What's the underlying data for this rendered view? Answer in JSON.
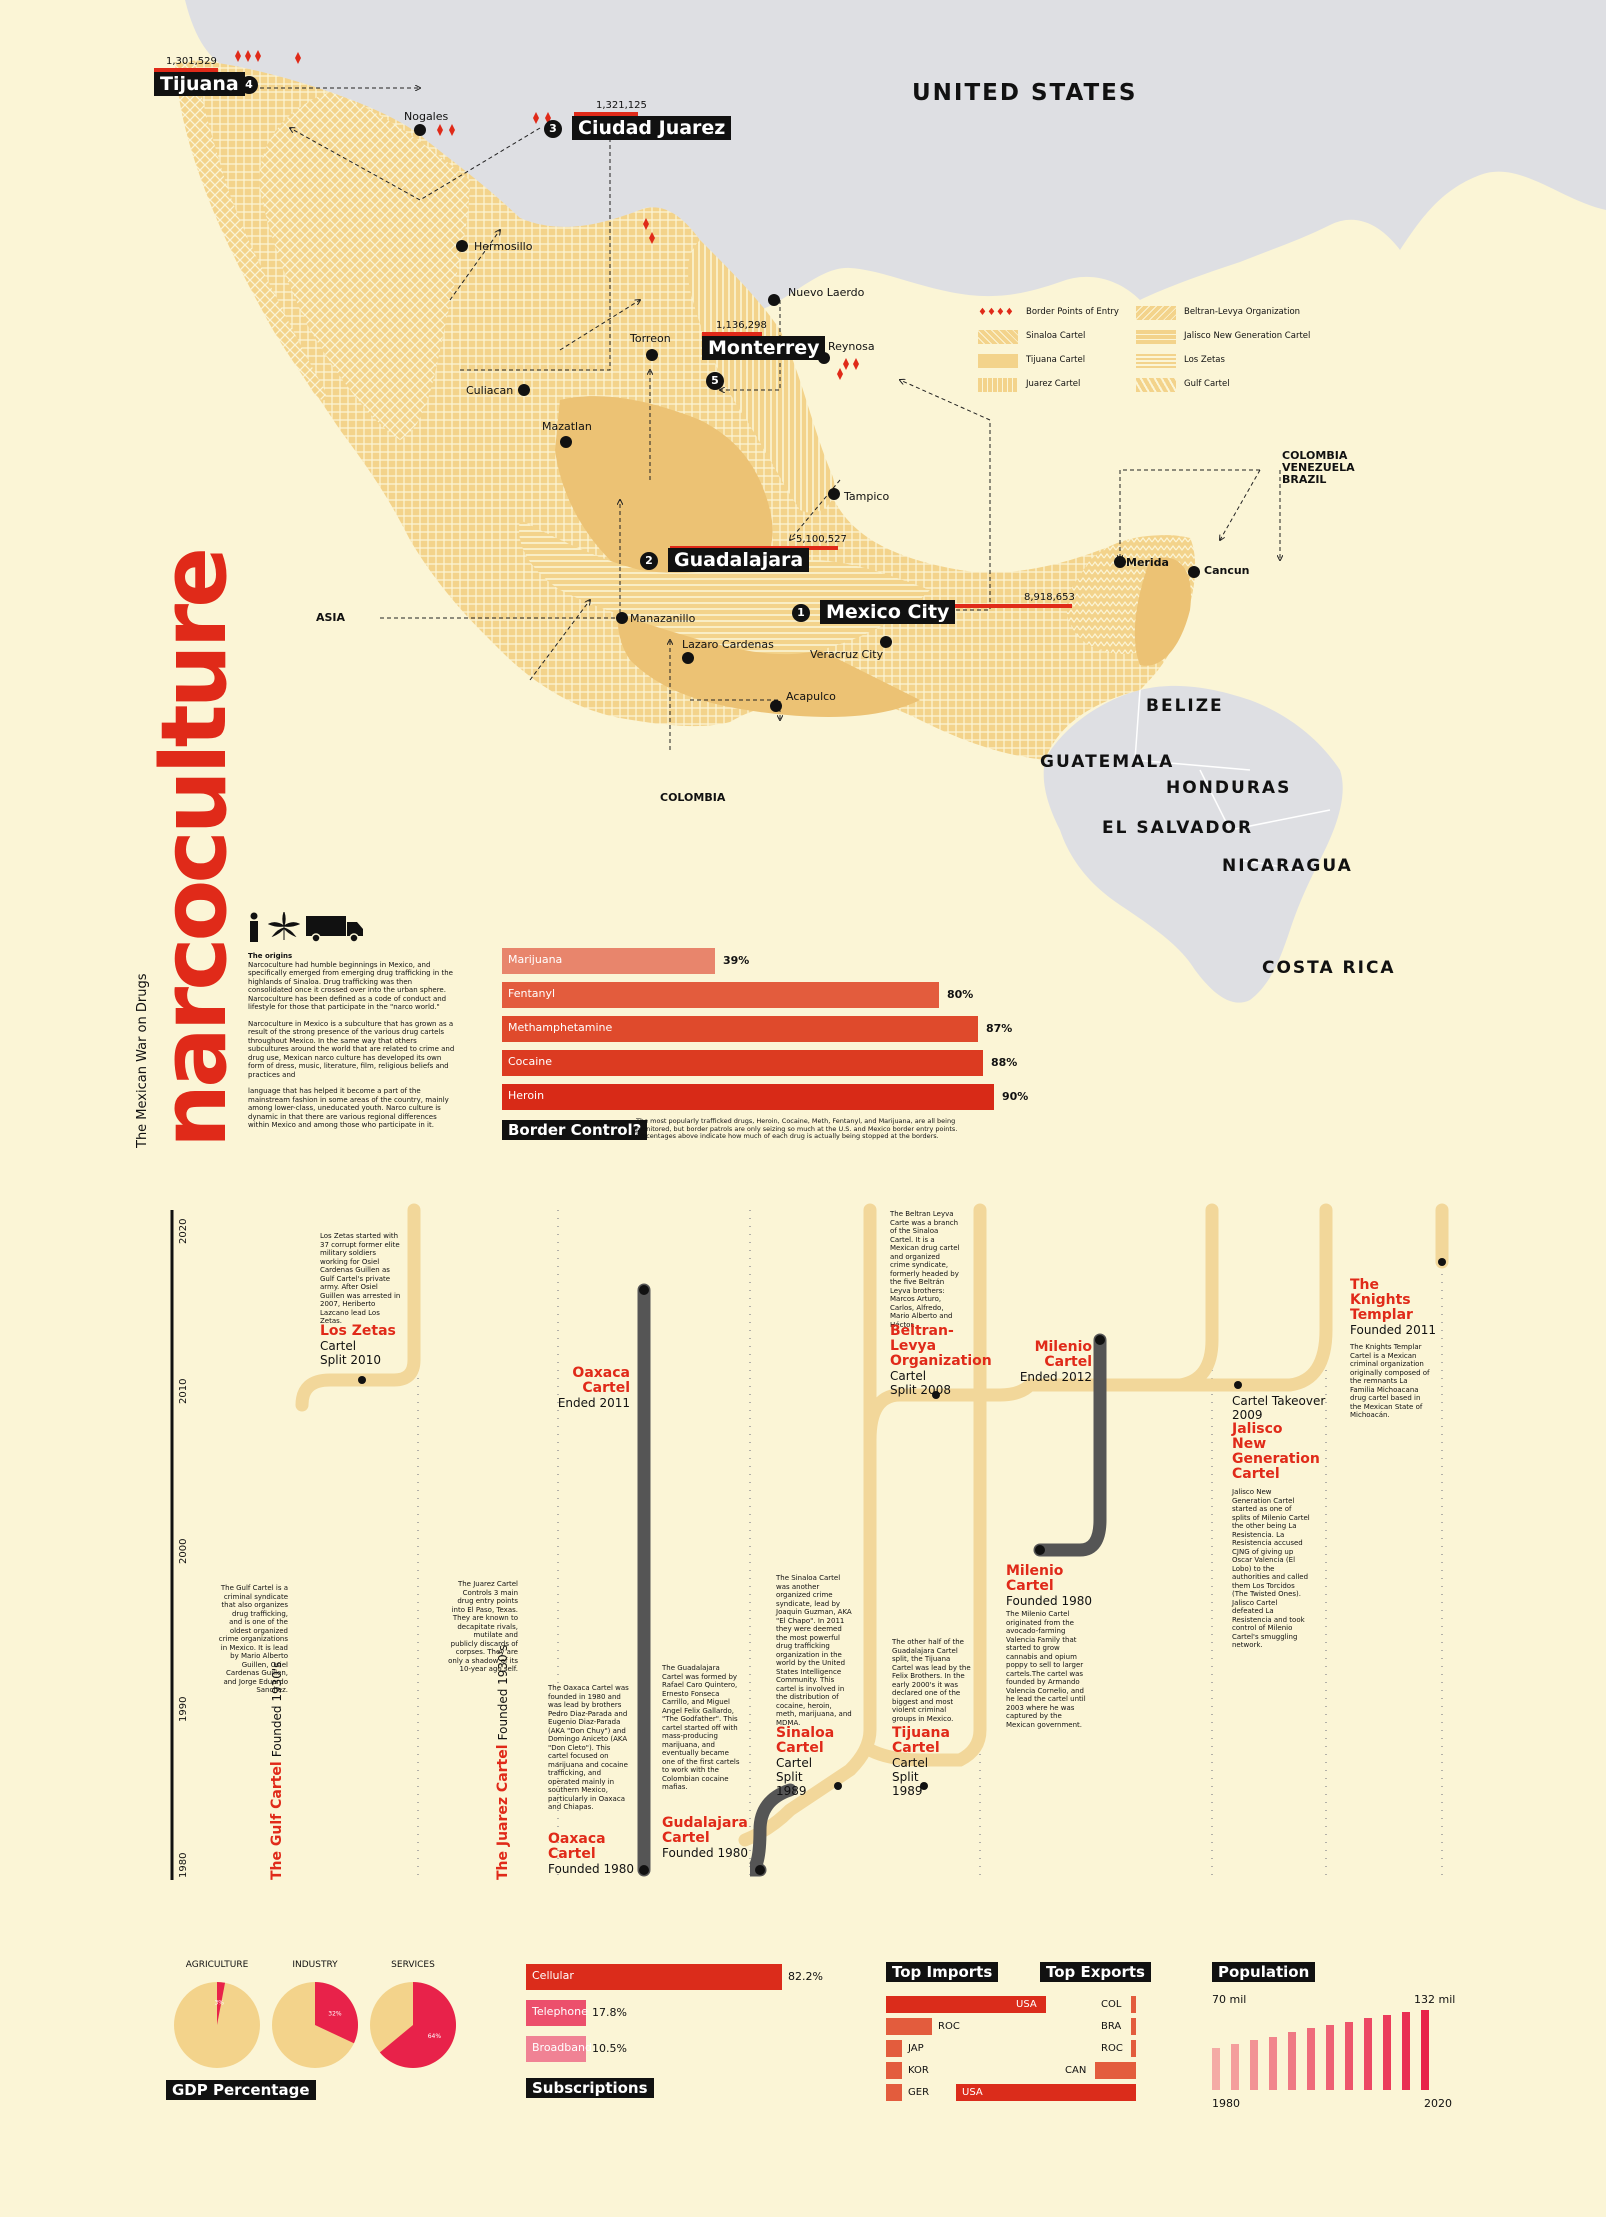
{
  "title": "narcoculture",
  "subtitle": "The Mexican War on Drugs",
  "colors": {
    "red": "#e02a19",
    "cream": "#fbf5d6",
    "tan": "#f3d38b",
    "gray": "#dedfe3",
    "dark": "#111111"
  },
  "map": {
    "countries": [
      "UNITED STATES",
      "BELIZE",
      "GUATEMALA",
      "HONDURAS",
      "EL SALVADOR",
      "NICARAGUA",
      "COSTA RICA"
    ],
    "origins": {
      "colombia_vv_brazil": [
        "COLOMBIA",
        "VENEZUELA",
        "BRAZIL"
      ],
      "asia": "ASIA",
      "colombia": "COLOMBIA"
    },
    "cities": [
      "Nogales",
      "Hermosillo",
      "Nuevo Laerdo",
      "Torreon",
      "Reynosa",
      "Culiacan",
      "Mazatlan",
      "Tampico",
      "Merida",
      "Cancun",
      "Manazanillo",
      "Lazaro Cardenas",
      "Veracruz City",
      "Acapulco"
    ],
    "major_cities": [
      {
        "rank": "1",
        "name": "Mexico City",
        "population": "8,918,653"
      },
      {
        "rank": "2",
        "name": "Guadalajara",
        "population": "5,100,527"
      },
      {
        "rank": "3",
        "name": "Ciudad Juarez",
        "population": "1,321,125"
      },
      {
        "rank": "4",
        "name": "Tijuana",
        "population": "1,301,529"
      },
      {
        "rank": "5",
        "name": "Monterrey",
        "population": "1,136,298"
      }
    ],
    "legend": [
      {
        "label": "Border Points of Entry",
        "icon": "border-points-icon"
      },
      {
        "label": "Sinaloa Cartel",
        "icon": "sinaloa-pattern"
      },
      {
        "label": "Tijuana Cartel",
        "icon": "tijuana-pattern"
      },
      {
        "label": "Juarez Cartel",
        "icon": "juarez-pattern"
      },
      {
        "label": "Beltran-Levya Organization",
        "icon": "beltran-pattern"
      },
      {
        "label": "Jalisco New Generation Cartel",
        "icon": "jalisco-pattern"
      },
      {
        "label": "Los Zetas",
        "icon": "zetas-pattern"
      },
      {
        "label": "Gulf Cartel",
        "icon": "gulf-pattern"
      }
    ]
  },
  "origins_text": {
    "heading": "The origins",
    "p1": "Narcoculture had humble beginnings in Mexico, and specifically emerged from emerging drug trafficking in the highlands of Sinaloa. Drug trafficking was then consolidated once it crossed over into the urban sphere. Narcoculture has been defined as a code of conduct and lifestyle for those that participate in the \"narco world.\"",
    "p2": "Narcoculture in Mexico is a subculture that has grown as a result of the strong presence of the various drug cartels throughout Mexico. In the same way that others subcultures around the world that are related to crime and drug use, Mexican narco culture has developed its own form of dress, music, literature, film, religious beliefs and practices and",
    "p3": "language that has helped it become a part of the mainstream fashion in some areas of the country, mainly among lower-class, uneducated youth. Narco culture is dynamic in that there are various regional differences within Mexico and among those who participate in it."
  },
  "border_control": {
    "heading": "Border Control?",
    "caption": "The most popularly trafficked drugs, Heroin, Cocaine, Meth, Fentanyl, and Marijuana, are all being monitored, but border patrols are only seizing so much at the U.S. and Mexico border entry points. Percentages above indicate how much of each drug is actually being stopped at the borders.",
    "bars": [
      {
        "label": "Marijuana",
        "value": 39,
        "text": "39%",
        "color": "#e8856c"
      },
      {
        "label": "Fentanyl",
        "value": 80,
        "text": "80%",
        "color": "#e35c3d"
      },
      {
        "label": "Methamphetamine",
        "value": 87,
        "text": "87%",
        "color": "#df4a2c"
      },
      {
        "label": "Cocaine",
        "value": 88,
        "text": "88%",
        "color": "#dc3b21"
      },
      {
        "label": "Heroin",
        "value": 90,
        "text": "90%",
        "color": "#d82a17"
      }
    ]
  },
  "timeline": {
    "years": [
      "1980",
      "1990",
      "2000",
      "2010",
      "2020"
    ],
    "cartels": [
      {
        "name": "The Gulf Cartel",
        "sub": "Founded 1930's",
        "desc": "The Gulf Cartel is a criminal syndicate that also organizes drug trafficking, and is one of the oldest organized crime organizations in Mexico. It is lead by Mario Alberto Guillen, Osiel Cardenas Guillen, and Jorge Eduardo Sanchez."
      },
      {
        "name": "Los Zetas",
        "sub": "Cartel Split 2010",
        "desc": "Los Zetas started with 37 corrupt former elite military soldiers working for Osiel Cardenas Guillen as Gulf Cartel's private army. After Osiel Guillen was arrested in 2007, Heriberto Lazcano lead Los Zetas."
      },
      {
        "name": "The Juarez Cartel",
        "sub": "Founded 1930's",
        "desc": "The Juarez Cartel Controls 3 main drug entry points into El Paso, Texas. They are known to decapitate rivals, mutilate and publicly discards of corpses. They are only a shadow of its 10-year ago self."
      },
      {
        "name": "Oaxaca Cartel",
        "sub": "Ended 2011",
        "desc": ""
      },
      {
        "name": "Oaxaca Cartel",
        "sub": "Founded 1980",
        "desc": "The Oaxaca Cartel was founded in 1980 and was lead by brothers Pedro Diaz-Parada and Eugenio Diaz-Parada (AKA \"Don Chuy\") and Domingo Aniceto (AKA \"Don Cleto\"). This cartel focused on marijuana and cocaine trafficking, and operated mainly in southern Mexico, particularly in Oaxaca and Chiapas."
      },
      {
        "name": "Gudalajara Cartel",
        "sub": "Founded 1980",
        "desc": "The Guadalajara Cartel was formed by Rafael Caro Quintero, Ernesto Fonseca Carrillo, and Miguel Angel Felix Gallardo, \"The Godfather\". This cartel started off with mass-producing marijuana, and eventually became one of the first cartels to work with the Colombian cocaine mafias."
      },
      {
        "name": "Sinaloa Cartel",
        "sub": "Cartel Split 1989",
        "desc": "The Sinaloa Cartel was another organized crime syndicate, lead by Joaquin Guzman, AKA \"El Chapo\". In 2011 they were deemed the most powerful drug trafficking organization in the world by the United States Intelligence Community. This cartel is involved in the distribution of cocaine, heroin, meth, marijuana, and MDMA."
      },
      {
        "name": "Beltran-Levya Organization",
        "sub": "Cartel Split 2008",
        "desc": "The Beltran Leyva Carte was a branch of the Sinaloa Cartel. It is a Mexican drug cartel and organized crime syndicate, formerly headed by the five Beltrán Leyva brothers: Marcos Arturo, Carlos, Alfredo, Mario Alberto and Héctor."
      },
      {
        "name": "Tijuana Cartel",
        "sub": "Cartel Split 1989",
        "desc": "The other half of the Guadalajara Cartel split, the Tijuana Cartel was lead by the Felix Brothers. In the early 2000's it was declared one of the biggest and most violent criminal groups in Mexico."
      },
      {
        "name": "Milenio Cartel",
        "sub": "Ended 2012",
        "desc": ""
      },
      {
        "name": "Milenio Cartel",
        "sub": "Founded 1980",
        "desc": "The Milenio Cartel originated from the avocado-farming Valencia Family that started to grow cannabis and opium poppy to sell to larger cartels.The cartel was founded by Armando Valencia Cornelio, and he lead the cartel until 2003 where he was captured by the Mexican government."
      },
      {
        "name": "Jalisco New Generation Cartel",
        "sub": "Cartel Takeover 2009",
        "desc": "Jalisco New Generation Cartel started as one of splits of Milenio Cartel the other being La Resistencia. La Resistencia accused CJNG of giving up Oscar Valencia (El Lobo) to the authorities and called them Los Torcidos (The Twisted Ones). Jalisco Cartel defeated La Resistencia and took control of Milenio Cartel's smuggling network."
      },
      {
        "name": "The Knights Templar",
        "sub": "Founded 2011",
        "desc": "The Knights Templar Cartel is a Mexican criminal organization originally composed of the remnants La Familia Michoacana drug cartel based in the Mexican State of Michoacán."
      }
    ]
  },
  "gdp": {
    "heading": "GDP Percentage",
    "pies": [
      {
        "label": "AGRICULTURE",
        "value": 3,
        "text": "3%"
      },
      {
        "label": "INDUSTRY",
        "value": 32,
        "text": "32%"
      },
      {
        "label": "SERVICES",
        "value": 64,
        "text": "64%"
      }
    ]
  },
  "subscriptions": {
    "heading": "Subscriptions",
    "bars": [
      {
        "label": "Cellular",
        "value": 82.2,
        "text": "82.2%",
        "color": "#db2c1b"
      },
      {
        "label": "Telephone",
        "value": 17.8,
        "text": "17.8%",
        "color": "#ec4f6c"
      },
      {
        "label": "Broadband",
        "value": 10.5,
        "text": "10.5%",
        "color": "#f08294"
      }
    ]
  },
  "trade": {
    "imports_heading": "Top Imports",
    "exports_heading": "Top Exports",
    "imports": [
      {
        "label": "USA",
        "value": 100
      },
      {
        "label": "ROC",
        "value": 29
      },
      {
        "label": "JAP",
        "value": 8
      },
      {
        "label": "KOR",
        "value": 7
      },
      {
        "label": "GER",
        "value": 6
      }
    ],
    "exports": [
      {
        "label": "COL",
        "value": 2
      },
      {
        "label": "BRA",
        "value": 2
      },
      {
        "label": "ROC",
        "value": 2
      },
      {
        "label": "CAN",
        "value": 23
      },
      {
        "label": "USA",
        "value": 100
      }
    ]
  },
  "population": {
    "heading": "Population",
    "start_label": "70 mil",
    "end_label": "132 mil",
    "start_year": "1980",
    "end_year": "2020",
    "values": [
      70,
      76,
      82,
      88,
      95,
      102,
      108,
      113,
      118,
      123,
      128,
      132
    ]
  }
}
